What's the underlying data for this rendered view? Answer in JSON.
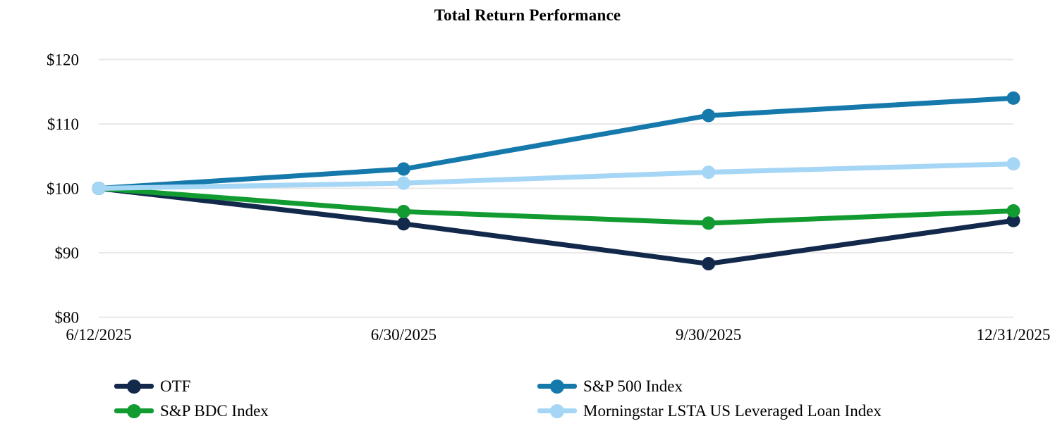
{
  "chart_data": {
    "type": "line",
    "title": "Total Return Performance",
    "categories": [
      "6/12/2025",
      "6/30/2025",
      "9/30/2025",
      "12/31/2025"
    ],
    "y_ticks": [
      {
        "label": "$120",
        "value": 120
      },
      {
        "label": "$110",
        "value": 110
      },
      {
        "label": "$100",
        "value": 100
      },
      {
        "label": "$90",
        "value": 90
      },
      {
        "label": "$80",
        "value": 80
      }
    ],
    "ylim": [
      80,
      120
    ],
    "grid": true,
    "legend_position": "bottom",
    "series": [
      {
        "name": "OTF",
        "color": "#13294b",
        "values": [
          100,
          94.5,
          88.3,
          95.0
        ]
      },
      {
        "name": "S&P 500 Index",
        "color": "#1579ab",
        "values": [
          100,
          103.0,
          111.3,
          114.0
        ]
      },
      {
        "name": "S&P BDC Index",
        "color": "#129b31",
        "values": [
          100,
          96.4,
          94.6,
          96.5
        ]
      },
      {
        "name": "Morningstar LSTA US Leveraged Loan Index",
        "color": "#a6d6f5",
        "values": [
          100,
          100.8,
          102.5,
          103.8
        ]
      }
    ],
    "colors": {
      "grid": "#e9e9e9",
      "text": "#000000",
      "background": "#ffffff"
    }
  }
}
